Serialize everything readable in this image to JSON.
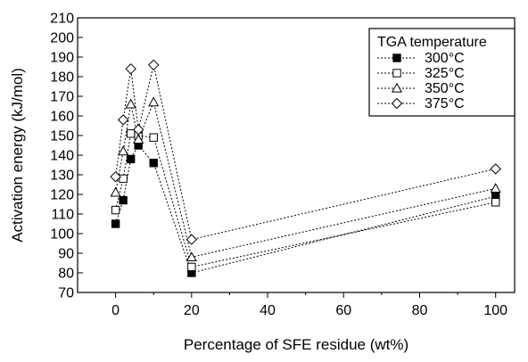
{
  "chart_data": {
    "type": "line",
    "xlabel": "Percentage of SFE residue (wt%)",
    "ylabel": "Activation energy (kJ/mol)",
    "xlim": [
      -10,
      105
    ],
    "ylim": [
      70,
      210
    ],
    "xticks": [
      0,
      20,
      40,
      60,
      80,
      100
    ],
    "yticks": [
      70,
      80,
      90,
      100,
      110,
      120,
      130,
      140,
      150,
      160,
      170,
      180,
      190,
      200,
      210
    ],
    "grid": false,
    "legend": {
      "title": "TGA temperature",
      "position": "top-right"
    },
    "x": [
      0,
      2,
      4,
      6,
      10,
      20,
      100
    ],
    "series": [
      {
        "name": "300°C",
        "marker": "filled-square",
        "values": [
          105,
          117,
          138,
          145,
          136,
          80,
          119
        ]
      },
      {
        "name": "325°C",
        "marker": "open-square",
        "values": [
          112,
          128,
          151,
          150,
          149,
          83,
          116
        ]
      },
      {
        "name": "350°C",
        "marker": "open-triangle",
        "values": [
          121,
          142,
          166,
          148,
          167,
          88,
          123
        ]
      },
      {
        "name": "375°C",
        "marker": "open-diamond",
        "values": [
          129,
          158,
          184,
          153,
          186,
          97,
          133
        ]
      }
    ]
  }
}
